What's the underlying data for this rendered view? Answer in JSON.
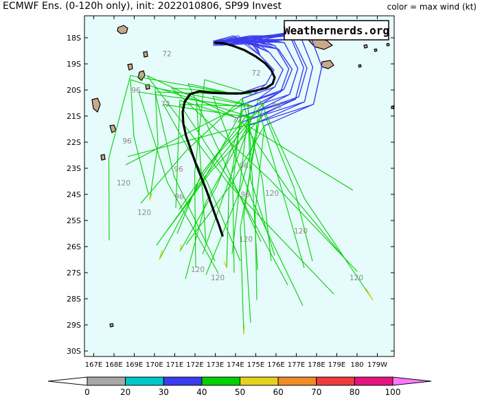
{
  "header": {
    "title": "ECMWF Ens. (0-120h only), init: 2022010806, SP99 Invest",
    "legend_note": "color = max wind (kt)"
  },
  "watermark": "Weathernerds.org",
  "map": {
    "lat_labels": [
      "18S",
      "19S",
      "20S",
      "21S",
      "22S",
      "23S",
      "24S",
      "25S",
      "26S",
      "27S",
      "28S",
      "29S",
      "30S"
    ],
    "lon_labels": [
      "167E",
      "168E",
      "169E",
      "170E",
      "171E",
      "172E",
      "173E",
      "174E",
      "175E",
      "176E",
      "177E",
      "178E",
      "179E",
      "180",
      "179W"
    ],
    "hour_labels": [
      "72",
      "96",
      "72",
      "96",
      "72",
      "96",
      "72",
      "96",
      "120",
      "96",
      "96",
      "96",
      "120",
      "120",
      "120",
      "120",
      "120",
      "120",
      "120"
    ],
    "colors": {
      "ocean": "#e6fbfb",
      "land": "#c9a98b",
      "mean_track": "#000000"
    }
  },
  "colorbar": {
    "unit": "kt",
    "ticks": [
      "0",
      "20",
      "30",
      "40",
      "50",
      "60",
      "70",
      "80",
      "100"
    ],
    "bins": [
      {
        "from": 0,
        "to": 20,
        "color": "#a8a8a8"
      },
      {
        "from": 20,
        "to": 30,
        "color": "#00c8c8"
      },
      {
        "from": 30,
        "to": 40,
        "color": "#3c3cf0"
      },
      {
        "from": 40,
        "to": 50,
        "color": "#00d000"
      },
      {
        "from": 50,
        "to": 60,
        "color": "#e6d21e"
      },
      {
        "from": 60,
        "to": 70,
        "color": "#f08c28"
      },
      {
        "from": 70,
        "to": 80,
        "color": "#f03c3c"
      },
      {
        "from": 80,
        "to": 100,
        "color": "#e6147e"
      }
    ],
    "below_color": "#ffffff",
    "above_color": "#ff78ff"
  }
}
